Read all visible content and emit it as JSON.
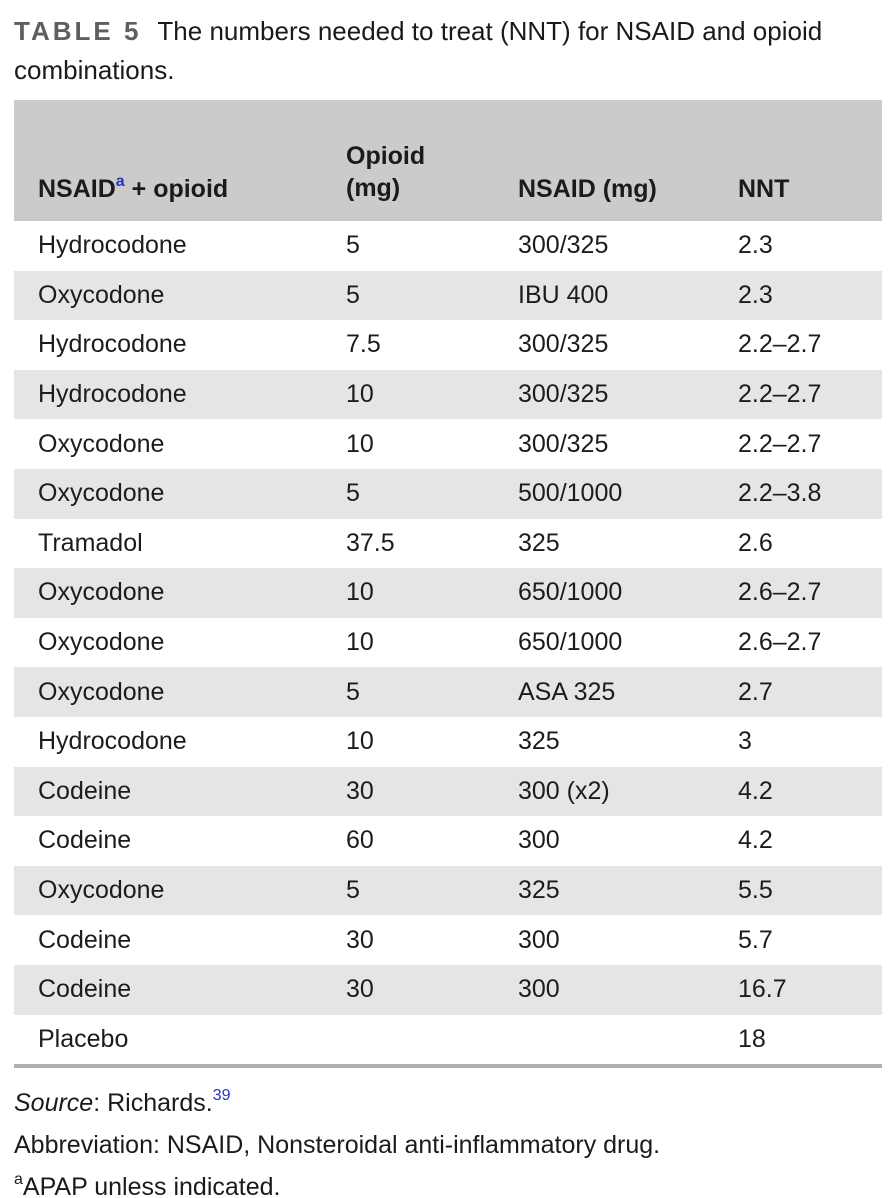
{
  "page": {
    "caption": {
      "label": "TABLE 5",
      "title": "The numbers needed to treat (NNT) for NSAID and opioid combinations."
    },
    "table": {
      "header": {
        "col1": {
          "text": "NSAID",
          "sup": "a",
          "rest": " + opioid"
        },
        "col2": {
          "line1": "Opioid",
          "line2": "(mg)"
        },
        "col3": "NSAID (mg)",
        "col4": "NNT"
      },
      "rows": [
        {
          "combo": "Hydrocodone",
          "opioid_mg": "5",
          "nsaid_mg": "300/325",
          "nnt": "2.3"
        },
        {
          "combo": "Oxycodone",
          "opioid_mg": "5",
          "nsaid_mg": "IBU 400",
          "nnt": "2.3"
        },
        {
          "combo": "Hydrocodone",
          "opioid_mg": "7.5",
          "nsaid_mg": "300/325",
          "nnt": "2.2–2.7"
        },
        {
          "combo": "Hydrocodone",
          "opioid_mg": "10",
          "nsaid_mg": "300/325",
          "nnt": "2.2–2.7"
        },
        {
          "combo": "Oxycodone",
          "opioid_mg": "10",
          "nsaid_mg": "300/325",
          "nnt": "2.2–2.7"
        },
        {
          "combo": "Oxycodone",
          "opioid_mg": "5",
          "nsaid_mg": "500/1000",
          "nnt": "2.2–3.8"
        },
        {
          "combo": "Tramadol",
          "opioid_mg": "37.5",
          "nsaid_mg": "325",
          "nnt": "2.6"
        },
        {
          "combo": "Oxycodone",
          "opioid_mg": "10",
          "nsaid_mg": "650/1000",
          "nnt": "2.6–2.7"
        },
        {
          "combo": "Oxycodone",
          "opioid_mg": "10",
          "nsaid_mg": "650/1000",
          "nnt": "2.6–2.7"
        },
        {
          "combo": "Oxycodone",
          "opioid_mg": "5",
          "nsaid_mg": "ASA 325",
          "nnt": "2.7"
        },
        {
          "combo": "Hydrocodone",
          "opioid_mg": "10",
          "nsaid_mg": "325",
          "nnt": "3"
        },
        {
          "combo": "Codeine",
          "opioid_mg": "30",
          "nsaid_mg": "300 (x2)",
          "nnt": "4.2"
        },
        {
          "combo": "Codeine",
          "opioid_mg": "60",
          "nsaid_mg": "300",
          "nnt": "4.2"
        },
        {
          "combo": "Oxycodone",
          "opioid_mg": "5",
          "nsaid_mg": "325",
          "nnt": "5.5"
        },
        {
          "combo": "Codeine",
          "opioid_mg": "30",
          "nsaid_mg": "300",
          "nnt": "5.7"
        },
        {
          "combo": "Codeine",
          "opioid_mg": "30",
          "nsaid_mg": "300",
          "nnt": "16.7"
        },
        {
          "combo": "Placebo",
          "opioid_mg": "",
          "nsaid_mg": "",
          "nnt": "18"
        }
      ]
    },
    "footnotes": {
      "source_label": "Source",
      "source_rest": ": Richards.",
      "source_ref": "39",
      "abbreviation": "Abbreviation: NSAID, Nonsteroidal anti-inflammatory drug.",
      "note_marker": "a",
      "note_text": "APAP unless indicated."
    },
    "colors": {
      "header_bg": "#cbcbc9",
      "row_alt_bg": "#e6e5e3",
      "accent_blue": "#2434c9",
      "caption_label_gray": "#5f5f5f",
      "bottom_rule_gray": "#b2b1af"
    }
  }
}
